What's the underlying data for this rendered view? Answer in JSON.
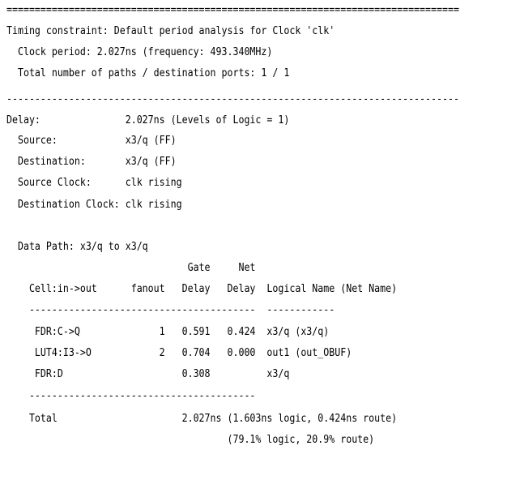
{
  "report": {
    "lines": [
      "================================================================================",
      "Timing constraint: Default period analysis for Clock 'clk'",
      "  Clock period: 2.027ns (frequency: 493.340MHz)",
      "  Total number of paths / destination ports: 1 / 1",
      "",
      "--------------------------------------------------------------------------------",
      "Delay:               2.027ns (Levels of Logic = 1)",
      "  Source:            x3/q (FF)",
      "  Destination:       x3/q (FF)",
      "  Source Clock:      clk rising",
      "  Destination Clock: clk rising",
      "",
      "  Data Path: x3/q to x3/q",
      "                                Gate     Net",
      "    Cell:in->out      fanout   Delay   Delay  Logical Name (Net Name)",
      "    ----------------------------------------  ------------",
      "     FDR:C->Q              1   0.591   0.424  x3/q (x3/q)",
      "     LUT4:I3->O            2   0.704   0.000  out1 (out_OBUF)",
      "     FDR:D                     0.308          x3/q",
      "    ----------------------------------------",
      "    Total                      2.027ns (1.603ns logic, 0.424ns route)",
      "                                       (79.1% logic, 20.9% route)"
    ]
  }
}
